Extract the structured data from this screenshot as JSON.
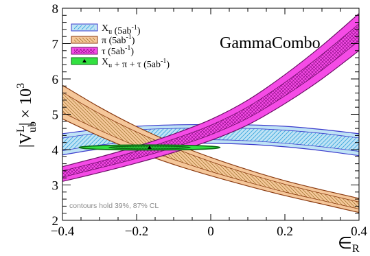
{
  "chart_data": {
    "type": "area",
    "xlabel": "∈R",
    "ylabel": "|V^L_ub| × 10^3",
    "xlim": [
      -0.4,
      0.4
    ],
    "ylim": [
      2,
      8
    ],
    "x_ticks": [
      "−0.4",
      "−0.2",
      "0",
      "0.2",
      "0.4"
    ],
    "y_ticks": [
      "2",
      "3",
      "4",
      "5",
      "6",
      "7",
      "8"
    ],
    "brand": "GammaCombo",
    "note": "contours hold 39%, 87% CL",
    "legend_placement": "top-left",
    "legend": [
      {
        "label": "X",
        "sub": "u",
        "suffix": " (5ab",
        "sup": "-1",
        "end": ")"
      },
      {
        "label": "π (5ab",
        "sub": "",
        "suffix": "",
        "sup": "-1",
        "end": ")"
      },
      {
        "label": "τ (5ab",
        "sub": "",
        "suffix": "",
        "sup": "-1",
        "end": ")"
      },
      {
        "label": "X",
        "sub": "u",
        "suffix": " + π + τ (5ab",
        "sup": "-1",
        "end": ")"
      }
    ],
    "series": [
      {
        "name": "Xu (5ab-1)",
        "fill": "#bfe3f5",
        "hatch": "#3aa6dd",
        "edge": "#3a3acc",
        "x": [
          -0.4,
          -0.3,
          -0.2,
          -0.1,
          0.0,
          0.1,
          0.2,
          0.3,
          0.4
        ],
        "outer_low": [
          3.85,
          4.02,
          4.12,
          4.17,
          4.18,
          4.15,
          4.08,
          3.97,
          3.83
        ],
        "outer_high": [
          4.45,
          4.58,
          4.66,
          4.7,
          4.71,
          4.7,
          4.66,
          4.57,
          4.45
        ],
        "inner_low": [
          3.97,
          4.13,
          4.22,
          4.27,
          4.28,
          4.25,
          4.18,
          4.08,
          3.95
        ],
        "inner_high": [
          4.33,
          4.47,
          4.56,
          4.6,
          4.61,
          4.6,
          4.55,
          4.46,
          4.33
        ]
      },
      {
        "name": "π (5ab-1)",
        "fill": "#f5c79a",
        "hatch": "#9c7328",
        "edge": "#8a3a10",
        "x": [
          -0.4,
          -0.3,
          -0.2,
          -0.1,
          0.0,
          0.1,
          0.2,
          0.3,
          0.4
        ],
        "outer_low": [
          4.87,
          4.38,
          3.95,
          3.58,
          3.26,
          2.97,
          2.7,
          2.46,
          2.22
        ],
        "outer_high": [
          5.82,
          5.2,
          4.65,
          4.18,
          3.78,
          3.43,
          3.12,
          2.86,
          2.62
        ],
        "inner_low": [
          5.05,
          4.55,
          4.1,
          3.72,
          3.38,
          3.08,
          2.8,
          2.56,
          2.32
        ],
        "inner_high": [
          5.62,
          5.02,
          4.5,
          4.05,
          3.66,
          3.32,
          3.02,
          2.76,
          2.52
        ]
      },
      {
        "name": "τ (5ab-1)",
        "fill": "#f54be6",
        "hatch": "#8f0f88",
        "edge": "#6b0f66",
        "x": [
          -0.4,
          -0.3,
          -0.2,
          -0.1,
          0.0,
          0.1,
          0.2,
          0.3,
          0.4
        ],
        "outer_low": [
          3.1,
          3.35,
          3.62,
          3.92,
          4.26,
          4.7,
          5.3,
          6.0,
          6.8
        ],
        "outer_high": [
          3.52,
          3.79,
          4.09,
          4.44,
          4.85,
          5.4,
          6.12,
          6.94,
          7.85
        ],
        "inner_low": [
          3.22,
          3.48,
          3.75,
          4.06,
          4.42,
          4.89,
          5.52,
          6.25,
          7.08
        ],
        "inner_high": [
          3.4,
          3.66,
          3.96,
          4.3,
          4.69,
          5.21,
          5.9,
          6.69,
          7.56
        ]
      }
    ],
    "combined": {
      "name": "Xu + π + τ (5ab-1)",
      "fill": "#32e040",
      "inner_fill": "#8ff080",
      "edge": "#0d6b14",
      "center": [
        -0.165,
        4.06
      ],
      "outer_radius": [
        0.072,
        0.19
      ],
      "inner_radius": [
        0.04,
        0.11
      ],
      "angle": 0,
      "best_fit": [
        -0.165,
        4.06
      ]
    }
  }
}
